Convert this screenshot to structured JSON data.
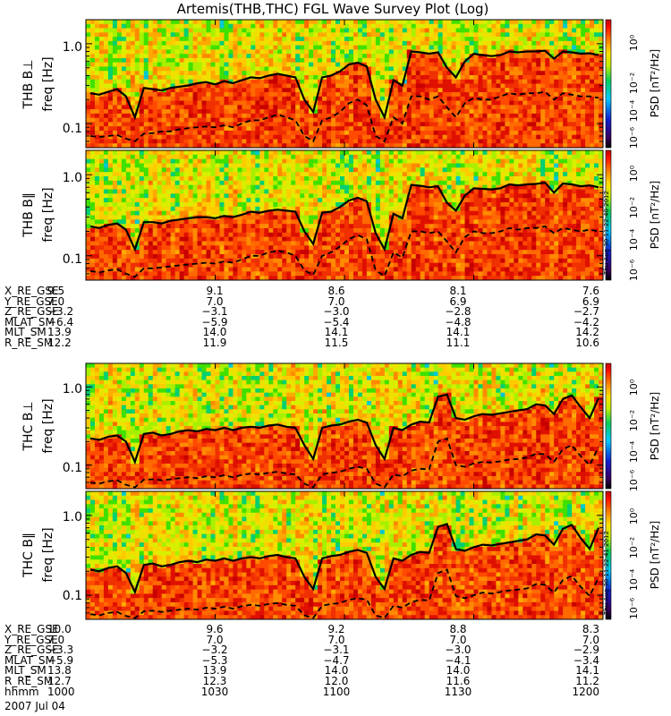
{
  "title": "Artemis(THB,THC) FGL Wave Survey Plot (Log)",
  "date": "2007 Jul 04",
  "colorbar": {
    "label": "PSD [nT²/Hz]",
    "ticks": [
      "10⁰",
      "10⁻²",
      "10⁻⁴",
      "10⁻⁶"
    ]
  },
  "stamps": [
    "Thu Aug 30 11:22:40 2012",
    "Thu Aug 30 11:22:41 2012"
  ],
  "chart_data": [
    {
      "type": "heatmap",
      "panel": "THB B⊥",
      "ylabel": "freq [Hz]",
      "yscale": "log",
      "ylim": [
        0.05,
        2.0
      ],
      "yticks": [
        "1.0",
        "0.1"
      ],
      "solid_line": [
        0.24,
        0.23,
        0.25,
        0.27,
        0.22,
        0.12,
        0.28,
        0.27,
        0.26,
        0.28,
        0.29,
        0.3,
        0.32,
        0.33,
        0.31,
        0.34,
        0.32,
        0.35,
        0.38,
        0.37,
        0.4,
        0.42,
        0.4,
        0.38,
        0.2,
        0.14,
        0.38,
        0.4,
        0.45,
        0.55,
        0.58,
        0.52,
        0.2,
        0.12,
        0.35,
        0.3,
        0.8,
        0.78,
        0.75,
        0.78,
        0.5,
        0.38,
        0.6,
        0.75,
        0.72,
        0.7,
        0.72,
        0.8,
        0.78,
        0.8,
        0.8,
        0.82,
        0.65,
        0.8,
        0.78,
        0.75,
        0.76,
        0.72
      ],
      "dashed_line": [
        0.07,
        0.068,
        0.07,
        0.072,
        0.065,
        0.06,
        0.075,
        0.076,
        0.08,
        0.08,
        0.085,
        0.088,
        0.09,
        0.092,
        0.09,
        0.095,
        0.09,
        0.1,
        0.11,
        0.11,
        0.12,
        0.13,
        0.12,
        0.11,
        0.07,
        0.06,
        0.11,
        0.12,
        0.14,
        0.18,
        0.2,
        0.17,
        0.07,
        0.06,
        0.12,
        0.1,
        0.22,
        0.22,
        0.2,
        0.22,
        0.16,
        0.12,
        0.18,
        0.21,
        0.2,
        0.2,
        0.22,
        0.24,
        0.23,
        0.24,
        0.24,
        0.25,
        0.2,
        0.24,
        0.23,
        0.22,
        0.22,
        0.21
      ]
    },
    {
      "type": "heatmap",
      "panel": "THB B∥",
      "ylabel": "freq [Hz]",
      "yscale": "log",
      "ylim": [
        0.05,
        2.0
      ],
      "yticks": [
        "1.0",
        "0.1"
      ],
      "solid_line": [
        0.23,
        0.22,
        0.24,
        0.25,
        0.21,
        0.12,
        0.26,
        0.26,
        0.25,
        0.27,
        0.28,
        0.29,
        0.3,
        0.3,
        0.29,
        0.31,
        0.3,
        0.32,
        0.35,
        0.34,
        0.36,
        0.37,
        0.36,
        0.35,
        0.2,
        0.14,
        0.34,
        0.35,
        0.4,
        0.48,
        0.52,
        0.47,
        0.19,
        0.12,
        0.33,
        0.29,
        0.75,
        0.73,
        0.7,
        0.72,
        0.45,
        0.36,
        0.55,
        0.68,
        0.67,
        0.66,
        0.68,
        0.76,
        0.74,
        0.76,
        0.77,
        0.8,
        0.6,
        0.78,
        0.76,
        0.72,
        0.74,
        0.7
      ],
      "dashed_line": [
        0.065,
        0.062,
        0.066,
        0.068,
        0.06,
        0.055,
        0.07,
        0.07,
        0.072,
        0.074,
        0.076,
        0.078,
        0.08,
        0.082,
        0.08,
        0.085,
        0.082,
        0.09,
        0.1,
        0.1,
        0.11,
        0.115,
        0.11,
        0.1,
        0.066,
        0.058,
        0.1,
        0.11,
        0.13,
        0.16,
        0.18,
        0.16,
        0.066,
        0.056,
        0.11,
        0.095,
        0.2,
        0.2,
        0.19,
        0.2,
        0.15,
        0.11,
        0.17,
        0.2,
        0.19,
        0.19,
        0.2,
        0.22,
        0.21,
        0.22,
        0.22,
        0.23,
        0.19,
        0.22,
        0.21,
        0.2,
        0.21,
        0.2
      ]
    },
    {
      "type": "heatmap",
      "panel": "THC B⊥",
      "ylabel": "freq [Hz]",
      "yscale": "log",
      "ylim": [
        0.05,
        2.0
      ],
      "yticks": [
        "1.0",
        "0.1"
      ],
      "solid_line": [
        0.22,
        0.21,
        0.23,
        0.24,
        0.2,
        0.11,
        0.25,
        0.26,
        0.24,
        0.25,
        0.27,
        0.28,
        0.27,
        0.29,
        0.28,
        0.3,
        0.28,
        0.3,
        0.31,
        0.3,
        0.32,
        0.33,
        0.31,
        0.3,
        0.18,
        0.12,
        0.3,
        0.32,
        0.33,
        0.36,
        0.38,
        0.35,
        0.18,
        0.12,
        0.3,
        0.28,
        0.33,
        0.36,
        0.35,
        0.75,
        0.8,
        0.4,
        0.38,
        0.42,
        0.45,
        0.44,
        0.46,
        0.48,
        0.5,
        0.52,
        0.6,
        0.58,
        0.45,
        0.7,
        0.78,
        0.55,
        0.4,
        0.72
      ],
      "dashed_line": [
        0.06,
        0.058,
        0.062,
        0.064,
        0.056,
        0.052,
        0.065,
        0.066,
        0.064,
        0.066,
        0.068,
        0.07,
        0.068,
        0.072,
        0.07,
        0.074,
        0.07,
        0.075,
        0.078,
        0.076,
        0.08,
        0.082,
        0.078,
        0.076,
        0.058,
        0.052,
        0.076,
        0.08,
        0.082,
        0.09,
        0.095,
        0.09,
        0.058,
        0.052,
        0.076,
        0.072,
        0.085,
        0.09,
        0.088,
        0.2,
        0.22,
        0.1,
        0.095,
        0.105,
        0.11,
        0.108,
        0.112,
        0.118,
        0.12,
        0.125,
        0.14,
        0.138,
        0.11,
        0.16,
        0.18,
        0.13,
        0.1,
        0.17
      ]
    },
    {
      "type": "heatmap",
      "panel": "THC B∥",
      "ylabel": "freq [Hz]",
      "yscale": "log",
      "ylim": [
        0.05,
        2.0
      ],
      "yticks": [
        "1.0",
        "0.1"
      ],
      "solid_line": [
        0.21,
        0.2,
        0.22,
        0.23,
        0.19,
        0.11,
        0.24,
        0.25,
        0.23,
        0.24,
        0.26,
        0.27,
        0.26,
        0.28,
        0.27,
        0.29,
        0.27,
        0.29,
        0.3,
        0.29,
        0.31,
        0.32,
        0.3,
        0.29,
        0.17,
        0.12,
        0.29,
        0.31,
        0.32,
        0.35,
        0.37,
        0.34,
        0.17,
        0.12,
        0.29,
        0.27,
        0.32,
        0.35,
        0.34,
        0.72,
        0.78,
        0.38,
        0.36,
        0.4,
        0.43,
        0.42,
        0.44,
        0.46,
        0.48,
        0.5,
        0.58,
        0.56,
        0.43,
        0.68,
        0.76,
        0.52,
        0.38,
        0.7
      ],
      "dashed_line": [
        0.058,
        0.056,
        0.06,
        0.062,
        0.055,
        0.052,
        0.063,
        0.064,
        0.062,
        0.064,
        0.066,
        0.068,
        0.066,
        0.07,
        0.068,
        0.072,
        0.068,
        0.073,
        0.076,
        0.074,
        0.078,
        0.08,
        0.076,
        0.074,
        0.056,
        0.052,
        0.074,
        0.078,
        0.08,
        0.088,
        0.092,
        0.088,
        0.056,
        0.052,
        0.074,
        0.07,
        0.082,
        0.088,
        0.086,
        0.19,
        0.21,
        0.098,
        0.092,
        0.1,
        0.108,
        0.105,
        0.11,
        0.115,
        0.118,
        0.122,
        0.138,
        0.135,
        0.108,
        0.155,
        0.175,
        0.128,
        0.098,
        0.165
      ]
    }
  ],
  "orbit_tables": [
    {
      "labels": [
        "X_RE_GSE",
        "Y_RE_GSE",
        "Z_RE_GSE",
        "MLAT_SM",
        "MLT_SM",
        "R_RE_SM"
      ],
      "columns": [
        [
          "9.5",
          "7.0",
          "−3.2",
          "−6.4",
          "13.9",
          "12.2"
        ],
        [
          "9.1",
          "7.0",
          "−3.1",
          "−5.9",
          "14.0",
          "11.9"
        ],
        [
          "8.6",
          "7.0",
          "−3.0",
          "−5.4",
          "14.1",
          "11.5"
        ],
        [
          "8.1",
          "6.9",
          "−2.8",
          "−4.8",
          "14.1",
          "11.1"
        ],
        [
          "7.6",
          "6.9",
          "−2.7",
          "−4.2",
          "14.2",
          "10.6"
        ]
      ]
    },
    {
      "labels": [
        "X_RE_GSE",
        "Y_RE_GSE",
        "Z_RE_GSE",
        "MLAT_SM",
        "MLT_SM",
        "R_RE_SM",
        "hhmm"
      ],
      "columns": [
        [
          "10.0",
          "7.0",
          "−3.3",
          "−5.9",
          "13.8",
          "12.7",
          "1000"
        ],
        [
          "9.6",
          "7.0",
          "−3.2",
          "−5.3",
          "13.9",
          "12.3",
          "1030"
        ],
        [
          "9.2",
          "7.0",
          "−3.1",
          "−4.7",
          "14.0",
          "12.0",
          "1100"
        ],
        [
          "8.8",
          "7.0",
          "−3.0",
          "−4.1",
          "14.0",
          "11.6",
          "1130"
        ],
        [
          "8.3",
          "7.0",
          "−2.9",
          "−3.4",
          "14.1",
          "11.2",
          "1200"
        ]
      ]
    }
  ]
}
